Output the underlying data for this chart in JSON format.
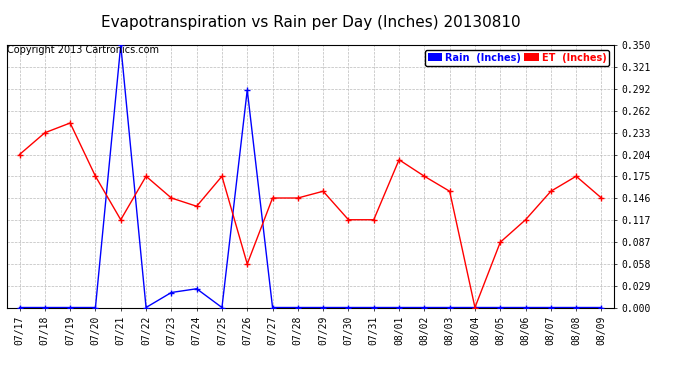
{
  "title": "Evapotranspiration vs Rain per Day (Inches) 20130810",
  "copyright": "Copyright 2013 Cartronics.com",
  "x_labels": [
    "07/17",
    "07/18",
    "07/19",
    "07/20",
    "07/21",
    "07/22",
    "07/23",
    "07/24",
    "07/25",
    "07/26",
    "07/27",
    "07/28",
    "07/29",
    "07/30",
    "07/31",
    "08/01",
    "08/02",
    "08/03",
    "08/04",
    "08/05",
    "08/06",
    "08/07",
    "08/08",
    "08/09"
  ],
  "rain_values": [
    0.0,
    0.0,
    0.0,
    0.0,
    0.35,
    0.0,
    0.02,
    0.025,
    0.0,
    0.29,
    0.0,
    0.0,
    0.0,
    0.0,
    0.0,
    0.0,
    0.0,
    0.0,
    0.0,
    0.0,
    0.0,
    0.0,
    0.0,
    0.0
  ],
  "et_values": [
    0.204,
    0.233,
    0.246,
    0.175,
    0.117,
    0.175,
    0.146,
    0.135,
    0.175,
    0.058,
    0.146,
    0.146,
    0.155,
    0.117,
    0.117,
    0.197,
    0.175,
    0.155,
    0.0,
    0.087,
    0.117,
    0.155,
    0.175,
    0.146
  ],
  "rain_color": "#0000ff",
  "et_color": "#ff0000",
  "background_color": "#ffffff",
  "plot_bg_color": "#ffffff",
  "grid_color": "#bbbbbb",
  "ylim": [
    0.0,
    0.35
  ],
  "yticks": [
    0.0,
    0.029,
    0.058,
    0.087,
    0.117,
    0.146,
    0.175,
    0.204,
    0.233,
    0.262,
    0.292,
    0.321,
    0.35
  ],
  "legend_rain_bg": "#0000ff",
  "legend_et_bg": "#ff0000",
  "title_fontsize": 11,
  "tick_fontsize": 7,
  "copyright_fontsize": 7
}
